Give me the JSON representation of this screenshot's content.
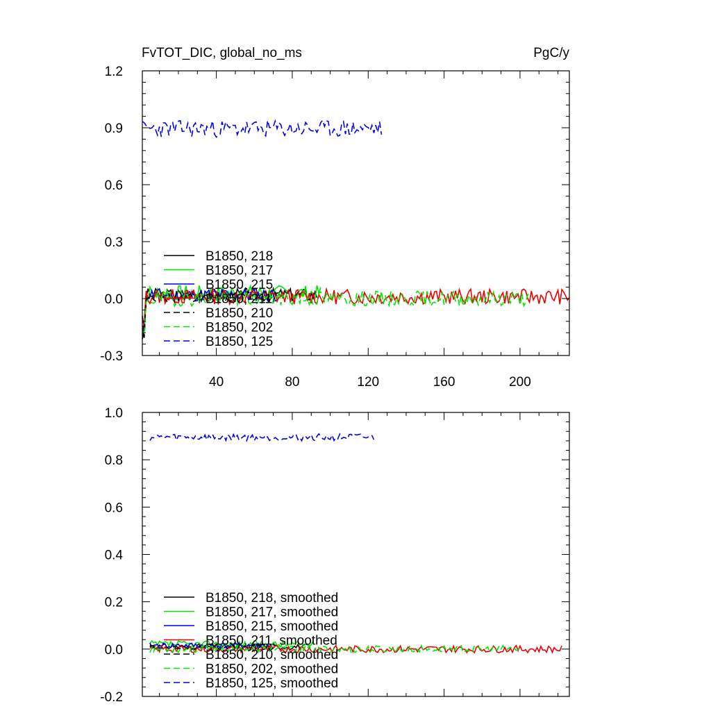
{
  "header": {
    "title": "FvTOT_DIC, global_no_ms",
    "units": "PgC/y"
  },
  "colors": {
    "black": "#000000",
    "green": "#00e600",
    "blue": "#0000ee",
    "red": "#ee0000"
  },
  "chart_data": [
    {
      "type": "line",
      "title": "FvTOT_DIC, global_no_ms",
      "units": "PgC/y",
      "xlim": [
        1,
        226
      ],
      "ylim": [
        -0.3,
        1.2
      ],
      "xticks": [
        40,
        80,
        120,
        160,
        200
      ],
      "xtick_labels": [
        "40",
        "80",
        "120",
        "160",
        "200"
      ],
      "yticks": [
        -0.3,
        0.0,
        0.3,
        0.6,
        0.9,
        1.2
      ],
      "ytick_labels": [
        "-0.3",
        "0.0",
        "0.3",
        "0.6",
        "0.9",
        "1.2"
      ],
      "grid": false,
      "legend_position": "lower-left",
      "series": [
        {
          "name": "B1850, 218",
          "color": "#000000",
          "dash": "solid",
          "start": 1,
          "end": 93,
          "base": 0.02,
          "amp": 0.035,
          "seed": 3
        },
        {
          "name": "B1850, 217",
          "color": "#00e600",
          "dash": "solid",
          "start": 1,
          "end": 95,
          "base": 0.03,
          "amp": 0.04,
          "seed": 7
        },
        {
          "name": "B1850, 215",
          "color": "#0000ee",
          "dash": "solid",
          "start": 1,
          "end": 73,
          "base": 0.02,
          "amp": 0.035,
          "seed": 11
        },
        {
          "name": "B1850, 211",
          "color": "#ee0000",
          "dash": "solid",
          "start": 1,
          "end": 226,
          "base": 0.01,
          "amp": 0.04,
          "seed": 13
        },
        {
          "name": "B1850, 210",
          "color": "#000000",
          "dash": "dashed",
          "start": 1,
          "end": 74,
          "base": 0.01,
          "amp": 0.03,
          "seed": 17
        },
        {
          "name": "B1850, 202",
          "color": "#00e600",
          "dash": "dashed",
          "start": 1,
          "end": 205,
          "base": 0.0,
          "amp": 0.04,
          "seed": 19
        },
        {
          "name": "B1850, 125",
          "color": "#0000ee",
          "dash": "dashed",
          "start": 1,
          "end": 127,
          "base": 0.895,
          "amp": 0.045,
          "seed": 23
        }
      ]
    },
    {
      "type": "line",
      "xlim": [
        1,
        226
      ],
      "ylim": [
        -0.2,
        1.0
      ],
      "xticks": [
        40,
        80,
        120,
        160,
        200
      ],
      "xtick_labels": [],
      "yticks": [
        -0.2,
        0.0,
        0.2,
        0.4,
        0.6,
        0.8,
        1.0
      ],
      "ytick_labels": [
        "-0.2",
        "0.0",
        "0.2",
        "0.4",
        "0.6",
        "0.8",
        "1.0"
      ],
      "grid": false,
      "legend_position": "lower-left",
      "series": [
        {
          "name": "B1850, 218, smoothed",
          "color": "#000000",
          "dash": "solid",
          "start": 5,
          "end": 89,
          "base": 0.01,
          "amp": 0.012,
          "seed": 31
        },
        {
          "name": "B1850, 217, smoothed",
          "color": "#00e600",
          "dash": "solid",
          "start": 5,
          "end": 91,
          "base": 0.02,
          "amp": 0.015,
          "seed": 37
        },
        {
          "name": "B1850, 215, smoothed",
          "color": "#0000ee",
          "dash": "solid",
          "start": 5,
          "end": 69,
          "base": 0.015,
          "amp": 0.012,
          "seed": 41
        },
        {
          "name": "B1850, 211, smoothed",
          "color": "#ee0000",
          "dash": "solid",
          "start": 5,
          "end": 222,
          "base": 0.0,
          "amp": 0.015,
          "seed": 43
        },
        {
          "name": "B1850, 210, smoothed",
          "color": "#000000",
          "dash": "dashed",
          "start": 5,
          "end": 70,
          "base": 0.005,
          "amp": 0.012,
          "seed": 47
        },
        {
          "name": "B1850, 202, smoothed",
          "color": "#00e600",
          "dash": "dashed",
          "start": 5,
          "end": 201,
          "base": 0.0,
          "amp": 0.015,
          "seed": 53
        },
        {
          "name": "B1850, 125, smoothed",
          "color": "#0000ee",
          "dash": "dashed",
          "start": 5,
          "end": 123,
          "base": 0.895,
          "amp": 0.015,
          "seed": 59
        }
      ]
    }
  ]
}
